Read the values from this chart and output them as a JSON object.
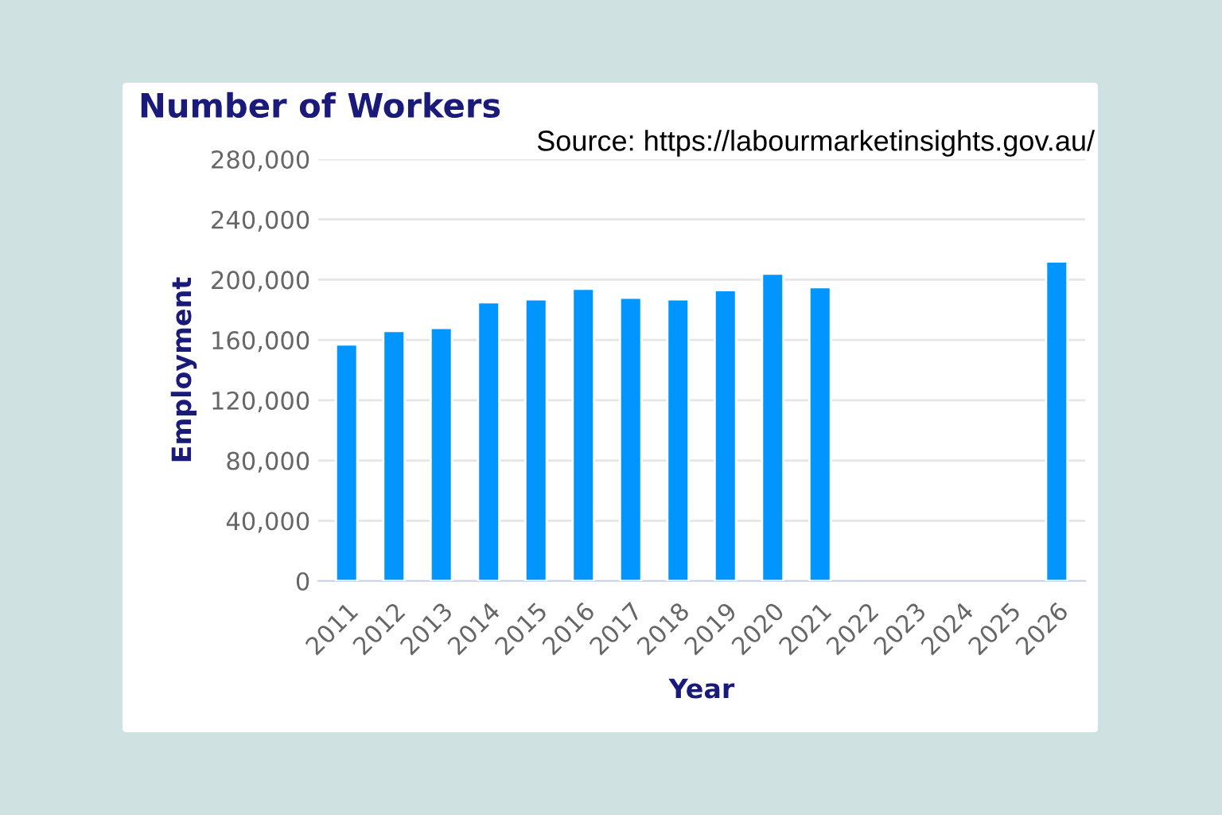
{
  "chart_data": {
    "type": "bar",
    "title": "Number of Workers",
    "xlabel": "Year",
    "ylabel": "Employment",
    "annotations": [
      "Source: https://labourmarketinsights.gov.au/"
    ],
    "categories": [
      "2011",
      "2012",
      "2013",
      "2014",
      "2015",
      "2016",
      "2017",
      "2018",
      "2019",
      "2020",
      "2021",
      "2022",
      "2023",
      "2024",
      "2025",
      "2026"
    ],
    "values": [
      157000,
      166000,
      168000,
      185000,
      187000,
      194000,
      188000,
      187000,
      193000,
      204000,
      195000,
      null,
      null,
      null,
      null,
      212000
    ],
    "color": "#0095ff",
    "ylim": [
      0,
      280000
    ],
    "yticks": [
      {
        "value": 0,
        "label": "0"
      },
      {
        "value": 40000,
        "label": "40,000"
      },
      {
        "value": 80000,
        "label": "80,000"
      },
      {
        "value": 120000,
        "label": "120,000"
      },
      {
        "value": 160000,
        "label": "160,000"
      },
      {
        "value": 200000,
        "label": "200,000"
      },
      {
        "value": 240000,
        "label": "240,000"
      },
      {
        "value": 280000,
        "label": "280,000"
      }
    ],
    "grid": "y"
  }
}
